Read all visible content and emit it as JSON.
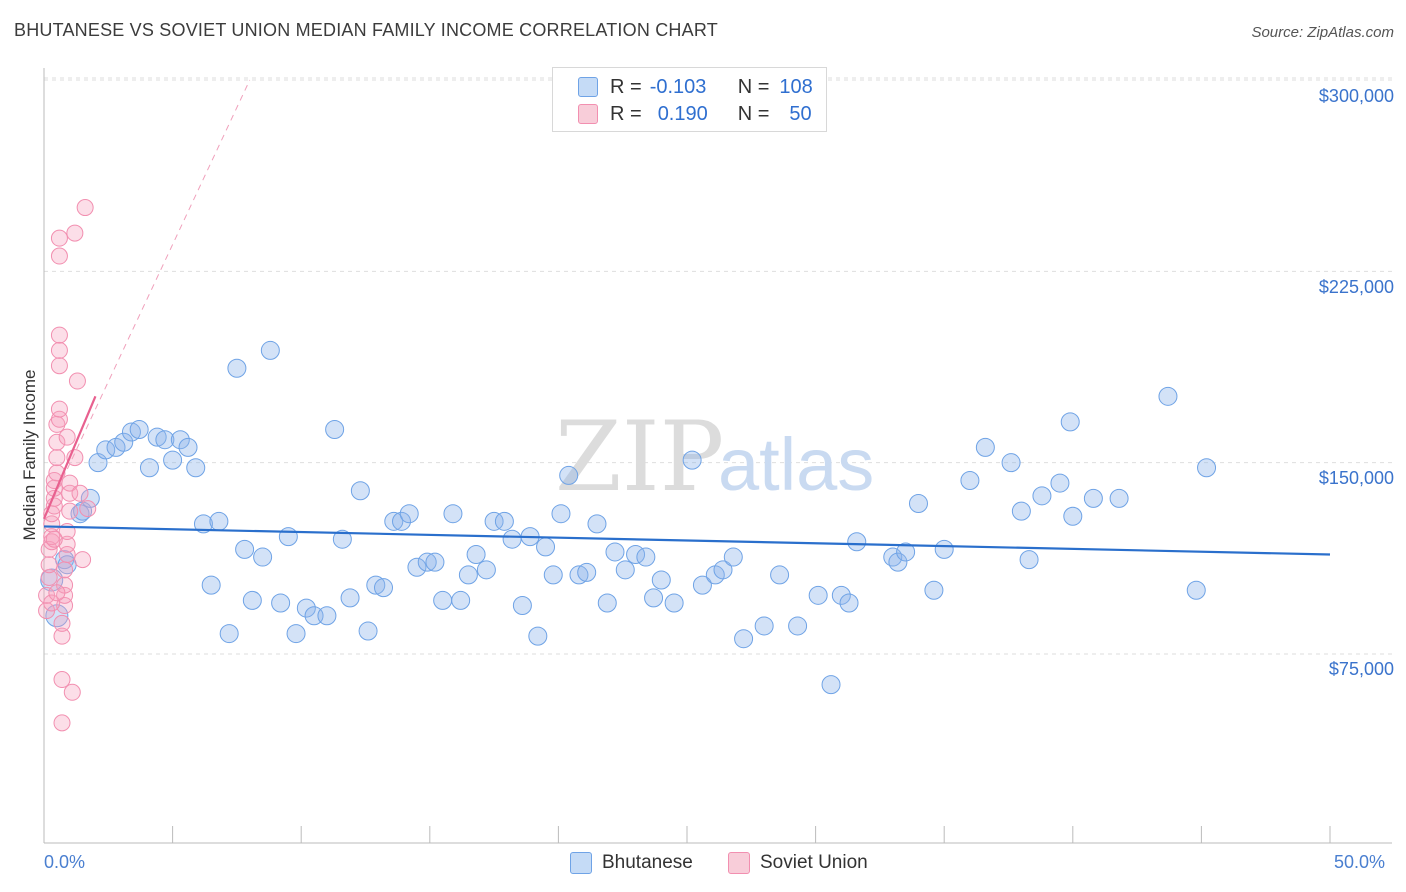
{
  "title": "BHUTANESE VS SOVIET UNION MEDIAN FAMILY INCOME CORRELATION CHART",
  "source": "Source: ZipAtlas.com",
  "watermark": {
    "zip": "ZIP",
    "atlas": "atlas"
  },
  "legend": {
    "rows": [
      {
        "r_label": "R =",
        "r_value": "-0.103",
        "n_label": "N =",
        "n_value": "108"
      },
      {
        "r_label": "R =",
        "r_value": "0.190",
        "n_label": "N =",
        "n_value": "50"
      }
    ]
  },
  "colors": {
    "bhutanese": "#6fa3e6",
    "soviet": "#f28fb0",
    "blue_line": "#2a6fcc",
    "pink_line": "#e8608f"
  },
  "chart_data": {
    "type": "scatter",
    "title": "BHUTANESE VS SOVIET UNION MEDIAN FAMILY INCOME CORRELATION CHART",
    "xlabel": "",
    "ylabel": "Median Family Income",
    "xlim": [
      0,
      50
    ],
    "ylim": [
      0,
      315000
    ],
    "x_tick_labels": [
      "0.0%",
      "50.0%"
    ],
    "y_ticks": [
      75000,
      150000,
      225000,
      300000
    ],
    "y_tick_labels": [
      "$75,000",
      "$150,000",
      "$225,000",
      "$300,000"
    ],
    "legend_position": "top-center",
    "series": [
      {
        "name": "Bhutanese",
        "trend": {
          "x": [
            0,
            50
          ],
          "y": [
            125000,
            114000
          ]
        },
        "points": [
          [
            0.3,
            104000
          ],
          [
            0.5,
            90000
          ],
          [
            0.8,
            112000
          ],
          [
            0.9,
            110000
          ],
          [
            1.4,
            130000
          ],
          [
            1.5,
            131000
          ],
          [
            1.8,
            136000
          ],
          [
            2.1,
            150000
          ],
          [
            2.4,
            155000
          ],
          [
            2.8,
            156000
          ],
          [
            3.1,
            158000
          ],
          [
            3.4,
            162000
          ],
          [
            3.7,
            163000
          ],
          [
            4.1,
            148000
          ],
          [
            4.4,
            160000
          ],
          [
            4.7,
            159000
          ],
          [
            5.0,
            151000
          ],
          [
            5.3,
            159000
          ],
          [
            5.6,
            156000
          ],
          [
            5.9,
            148000
          ],
          [
            6.2,
            126000
          ],
          [
            6.5,
            102000
          ],
          [
            6.8,
            127000
          ],
          [
            7.2,
            83000
          ],
          [
            7.5,
            187000
          ],
          [
            7.8,
            116000
          ],
          [
            8.1,
            96000
          ],
          [
            8.5,
            113000
          ],
          [
            8.8,
            194000
          ],
          [
            9.2,
            95000
          ],
          [
            9.5,
            121000
          ],
          [
            9.8,
            83000
          ],
          [
            10.2,
            93000
          ],
          [
            10.5,
            90000
          ],
          [
            11.0,
            90000
          ],
          [
            11.3,
            163000
          ],
          [
            11.6,
            120000
          ],
          [
            11.9,
            97000
          ],
          [
            12.3,
            139000
          ],
          [
            12.6,
            84000
          ],
          [
            12.9,
            102000
          ],
          [
            13.2,
            101000
          ],
          [
            13.6,
            127000
          ],
          [
            13.9,
            127000
          ],
          [
            14.2,
            130000
          ],
          [
            14.5,
            109000
          ],
          [
            14.9,
            111000
          ],
          [
            15.2,
            111000
          ],
          [
            15.5,
            96000
          ],
          [
            15.9,
            130000
          ],
          [
            16.2,
            96000
          ],
          [
            16.5,
            106000
          ],
          [
            16.8,
            114000
          ],
          [
            17.2,
            108000
          ],
          [
            17.5,
            127000
          ],
          [
            17.9,
            127000
          ],
          [
            18.2,
            120000
          ],
          [
            18.6,
            94000
          ],
          [
            18.9,
            121000
          ],
          [
            19.2,
            82000
          ],
          [
            19.5,
            117000
          ],
          [
            19.8,
            106000
          ],
          [
            20.1,
            130000
          ],
          [
            20.4,
            145000
          ],
          [
            20.8,
            106000
          ],
          [
            21.1,
            107000
          ],
          [
            21.5,
            126000
          ],
          [
            21.9,
            95000
          ],
          [
            22.2,
            115000
          ],
          [
            22.6,
            108000
          ],
          [
            23.0,
            114000
          ],
          [
            23.4,
            113000
          ],
          [
            23.7,
            97000
          ],
          [
            24.0,
            104000
          ],
          [
            24.5,
            95000
          ],
          [
            25.2,
            151000
          ],
          [
            25.6,
            102000
          ],
          [
            26.1,
            106000
          ],
          [
            26.4,
            108000
          ],
          [
            26.8,
            113000
          ],
          [
            27.2,
            81000
          ],
          [
            28.0,
            86000
          ],
          [
            28.6,
            106000
          ],
          [
            29.3,
            86000
          ],
          [
            30.1,
            98000
          ],
          [
            30.6,
            63000
          ],
          [
            31.0,
            98000
          ],
          [
            31.3,
            95000
          ],
          [
            31.6,
            119000
          ],
          [
            33.0,
            113000
          ],
          [
            33.2,
            111000
          ],
          [
            33.5,
            115000
          ],
          [
            34.0,
            134000
          ],
          [
            34.6,
            100000
          ],
          [
            35.0,
            116000
          ],
          [
            36.0,
            143000
          ],
          [
            36.6,
            156000
          ],
          [
            37.6,
            150000
          ],
          [
            38.0,
            131000
          ],
          [
            38.3,
            112000
          ],
          [
            38.8,
            137000
          ],
          [
            39.5,
            142000
          ],
          [
            39.9,
            166000
          ],
          [
            40.0,
            129000
          ],
          [
            40.8,
            136000
          ],
          [
            41.8,
            136000
          ],
          [
            43.7,
            176000
          ],
          [
            44.8,
            100000
          ],
          [
            45.2,
            148000
          ]
        ]
      },
      {
        "name": "Soviet Union",
        "trend_solid": {
          "x": [
            0,
            2
          ],
          "y": [
            128000,
            176000
          ]
        },
        "trend_dashed": {
          "x": [
            0,
            8
          ],
          "y": [
            128000,
            300000
          ]
        },
        "points": [
          [
            0.1,
            92000
          ],
          [
            0.1,
            98000
          ],
          [
            0.2,
            105000
          ],
          [
            0.2,
            110000
          ],
          [
            0.2,
            116000
          ],
          [
            0.3,
            119000
          ],
          [
            0.3,
            121000
          ],
          [
            0.3,
            126000
          ],
          [
            0.3,
            130000
          ],
          [
            0.4,
            133000
          ],
          [
            0.4,
            136000
          ],
          [
            0.4,
            140000
          ],
          [
            0.4,
            143000
          ],
          [
            0.5,
            146000
          ],
          [
            0.5,
            152000
          ],
          [
            0.5,
            158000
          ],
          [
            0.5,
            165000
          ],
          [
            0.6,
            167000
          ],
          [
            0.6,
            171000
          ],
          [
            0.6,
            188000
          ],
          [
            0.6,
            194000
          ],
          [
            0.6,
            200000
          ],
          [
            0.6,
            231000
          ],
          [
            0.6,
            238000
          ],
          [
            0.7,
            48000
          ],
          [
            0.7,
            65000
          ],
          [
            0.7,
            82000
          ],
          [
            0.7,
            87000
          ],
          [
            0.8,
            94000
          ],
          [
            0.8,
            98000
          ],
          [
            0.8,
            102000
          ],
          [
            0.8,
            108000
          ],
          [
            0.9,
            114000
          ],
          [
            0.9,
            118000
          ],
          [
            0.9,
            123000
          ],
          [
            1.0,
            131000
          ],
          [
            1.0,
            138000
          ],
          [
            1.0,
            142000
          ],
          [
            1.1,
            60000
          ],
          [
            1.2,
            152000
          ],
          [
            1.2,
            240000
          ],
          [
            1.3,
            182000
          ],
          [
            1.4,
            138000
          ],
          [
            1.6,
            250000
          ],
          [
            1.5,
            112000
          ],
          [
            1.7,
            132000
          ],
          [
            0.4,
            120000
          ],
          [
            0.3,
            95000
          ],
          [
            0.5,
            99000
          ],
          [
            0.9,
            160000
          ]
        ]
      }
    ]
  },
  "bottom_legend": [
    {
      "label": "Bhutanese"
    },
    {
      "label": "Soviet Union"
    }
  ]
}
